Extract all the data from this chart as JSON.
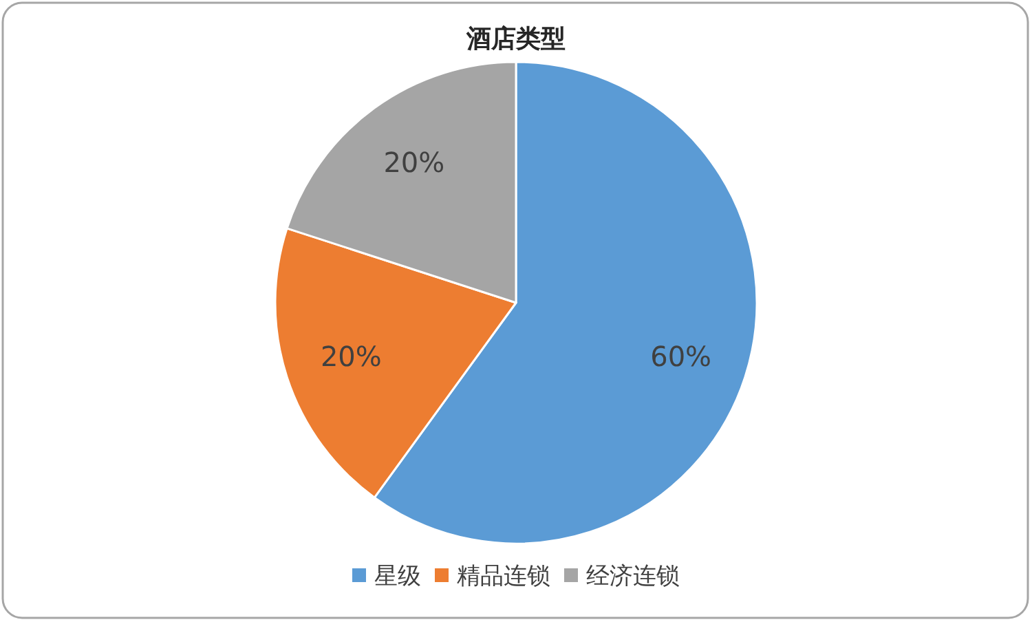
{
  "chart_data": {
    "type": "pie",
    "title": "酒店类型",
    "categories": [
      "星级",
      "精品连锁",
      "经济连锁"
    ],
    "values": [
      60,
      20,
      20
    ],
    "colors": [
      "#5b9bd5",
      "#ed7d31",
      "#a5a5a5"
    ],
    "value_labels": [
      "60%",
      "20%",
      "20%"
    ],
    "legend": "bottom"
  }
}
